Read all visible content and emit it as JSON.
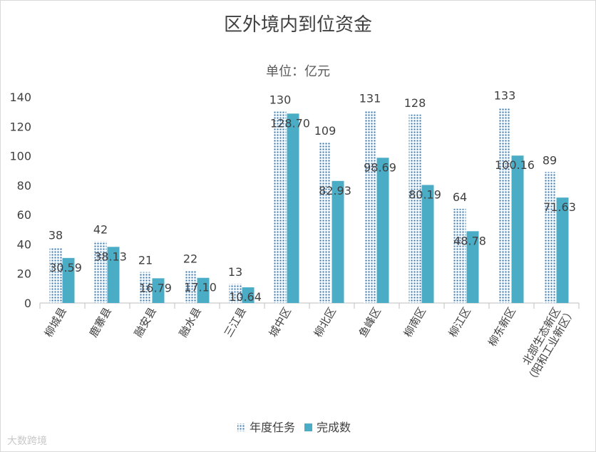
{
  "chart_data": {
    "type": "bar",
    "title": "区外境内到位资金",
    "subtitle": "单位：亿元",
    "categories": [
      "柳城县",
      "鹿寨县",
      "融安县",
      "融水县",
      "三江县",
      "城中区",
      "柳北区",
      "鱼峰区",
      "柳南区",
      "柳江区",
      "柳东新区",
      "北部生态新区\n（阳和工业新区）"
    ],
    "series": [
      {
        "name": "年度任务",
        "color": "#2e75b6",
        "pattern": "dotted",
        "values": [
          38,
          42,
          21,
          22,
          13,
          130,
          109,
          131,
          128,
          64,
          133,
          89
        ],
        "labels": [
          "38",
          "42",
          "21",
          "22",
          "13",
          "130",
          "109",
          "131",
          "128",
          "64",
          "133",
          "89"
        ]
      },
      {
        "name": "完成数",
        "color": "#4bacc6",
        "pattern": "solid",
        "values": [
          30.59,
          38.13,
          16.79,
          17.1,
          10.64,
          128.7,
          82.93,
          98.69,
          80.19,
          48.78,
          100.16,
          71.63
        ],
        "labels": [
          "30.59",
          "38.13",
          "16.79",
          "17.10",
          "10.64",
          "128.70",
          "82.93",
          "98.69",
          "80.19",
          "48.78",
          "100.16",
          "71.63"
        ]
      }
    ],
    "ylim": [
      0,
      140
    ],
    "yticks": [
      "0",
      "20",
      "40",
      "60",
      "80",
      "100",
      "120",
      "140"
    ],
    "grid": false,
    "legend": "bottom"
  },
  "watermark": "大数跨境"
}
